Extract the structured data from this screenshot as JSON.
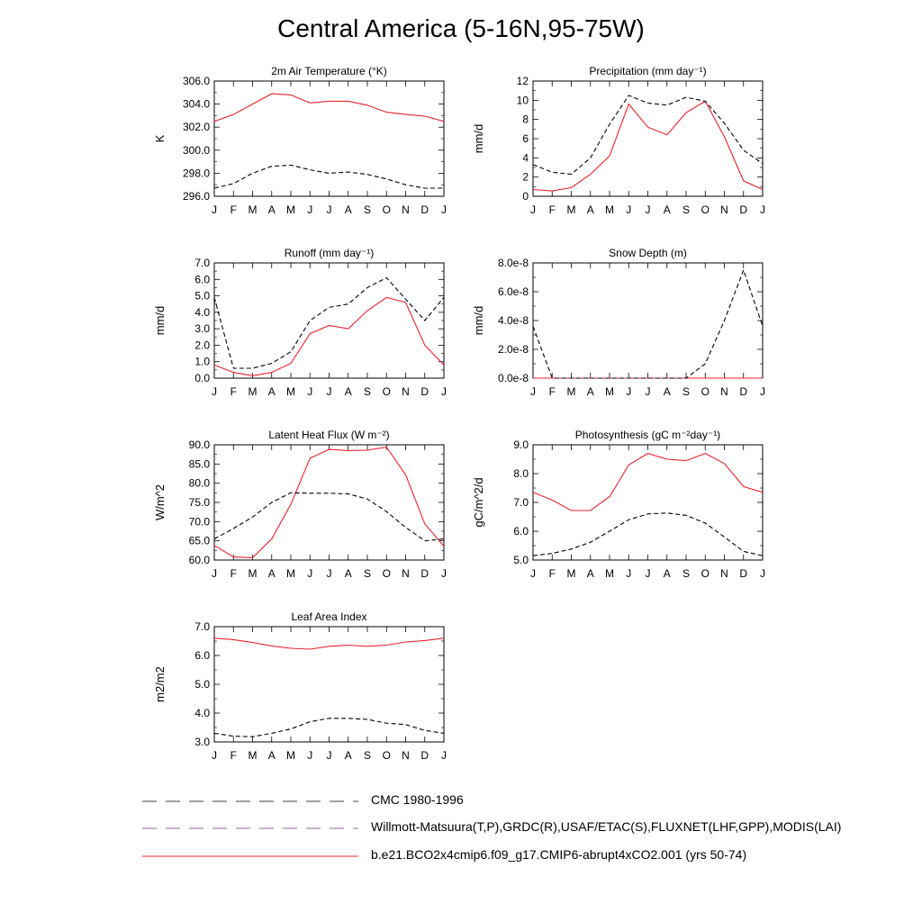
{
  "page_title": "Central America (5-16N,95-75W)",
  "colors": {
    "model": "#e8232e",
    "obs": "#000000",
    "obs_alt": "#3b3bbd"
  },
  "chart_data": [
    {
      "id": "tair",
      "type": "line",
      "title": "2m Air Temperature (°K)",
      "ylabel": "K",
      "categories": [
        "J",
        "F",
        "M",
        "A",
        "M",
        "J",
        "J",
        "A",
        "S",
        "O",
        "N",
        "D",
        "J"
      ],
      "ylim": [
        296.0,
        306.0
      ],
      "yticks": [
        "296.0",
        "298.0",
        "300.0",
        "302.0",
        "304.0",
        "306.0"
      ],
      "series": [
        {
          "style": "model",
          "values": [
            302.5,
            303.1,
            304.0,
            304.9,
            304.8,
            304.1,
            304.25,
            304.25,
            303.9,
            303.3,
            303.1,
            302.95,
            302.5
          ]
        },
        {
          "style": "obs",
          "values": [
            296.7,
            297.1,
            298.0,
            298.6,
            298.7,
            298.3,
            298.0,
            298.1,
            297.9,
            297.5,
            297.0,
            296.7,
            296.7
          ]
        }
      ]
    },
    {
      "id": "precip",
      "type": "line",
      "title": "Precipitation (mm day⁻¹)",
      "ylabel": "mm/d",
      "categories": [
        "J",
        "F",
        "M",
        "A",
        "M",
        "J",
        "J",
        "A",
        "S",
        "O",
        "N",
        "D",
        "J"
      ],
      "ylim": [
        0,
        12
      ],
      "yticks": [
        "0",
        "2",
        "4",
        "6",
        "8",
        "10",
        "12"
      ],
      "series": [
        {
          "style": "model",
          "values": [
            0.7,
            0.55,
            0.9,
            2.3,
            4.2,
            9.6,
            7.2,
            6.4,
            8.7,
            9.9,
            6.2,
            1.6,
            0.7
          ]
        },
        {
          "style": "obs",
          "values": [
            3.3,
            2.5,
            2.3,
            4.0,
            7.5,
            10.5,
            9.7,
            9.5,
            10.3,
            9.9,
            7.6,
            4.8,
            3.4
          ]
        }
      ]
    },
    {
      "id": "runoff",
      "type": "line",
      "title": "Runoff (mm day⁻¹)",
      "ylabel": "mm/d",
      "categories": [
        "J",
        "F",
        "M",
        "A",
        "M",
        "J",
        "J",
        "A",
        "S",
        "O",
        "N",
        "D",
        "J"
      ],
      "ylim": [
        0,
        7
      ],
      "yticks": [
        "0.0",
        "1.0",
        "2.0",
        "3.0",
        "4.0",
        "5.0",
        "6.0",
        "7.0"
      ],
      "series": [
        {
          "style": "model",
          "values": [
            0.8,
            0.35,
            0.15,
            0.35,
            0.9,
            2.7,
            3.2,
            3.0,
            4.1,
            4.9,
            4.6,
            2.0,
            0.8
          ]
        },
        {
          "style": "obs",
          "values": [
            4.9,
            0.6,
            0.6,
            0.9,
            1.6,
            3.5,
            4.3,
            4.5,
            5.5,
            6.1,
            4.8,
            3.5,
            4.9
          ]
        }
      ]
    },
    {
      "id": "snow",
      "type": "line",
      "title": "Snow Depth (m)",
      "ylabel": "mm/d",
      "categories": [
        "J",
        "F",
        "M",
        "A",
        "M",
        "J",
        "J",
        "A",
        "S",
        "O",
        "N",
        "D",
        "J"
      ],
      "ylim": [
        0,
        8e-08
      ],
      "yticks": [
        "0.0e-8",
        "2.0e-8",
        "4.0e-8",
        "6.0e-8",
        "8.0e-8"
      ],
      "series": [
        {
          "style": "model",
          "values": [
            0,
            0,
            0,
            0,
            0,
            0,
            0,
            0,
            0,
            0,
            0,
            0,
            0
          ]
        },
        {
          "style": "obs",
          "values": [
            3.6e-08,
            0,
            0,
            0,
            0,
            0,
            0,
            0,
            0,
            1e-08,
            4e-08,
            7.5e-08,
            3.6e-08
          ]
        }
      ]
    },
    {
      "id": "lhf",
      "type": "line",
      "title": "Latent Heat Flux (W m⁻²)",
      "ylabel": "W/m^2",
      "categories": [
        "J",
        "F",
        "M",
        "A",
        "M",
        "J",
        "J",
        "A",
        "S",
        "O",
        "N",
        "D",
        "J"
      ],
      "ylim": [
        60,
        90
      ],
      "yticks": [
        "60.0",
        "65.0",
        "70.0",
        "75.0",
        "80.0",
        "85.0",
        "90.0"
      ],
      "series": [
        {
          "style": "model",
          "values": [
            63.8,
            60.8,
            60.6,
            65.5,
            74.5,
            86.5,
            88.8,
            88.5,
            88.6,
            89.4,
            82.2,
            69.4,
            63.6
          ]
        },
        {
          "style": "obs",
          "values": [
            65.5,
            68.2,
            71.2,
            75.0,
            77.5,
            77.4,
            77.4,
            77.2,
            75.9,
            72.6,
            68.5,
            65.0,
            65.5
          ]
        }
      ]
    },
    {
      "id": "gpp",
      "type": "line",
      "title": "Photosynthesis (gC m⁻²day⁻¹)",
      "ylabel": "gC/m^2/d",
      "categories": [
        "J",
        "F",
        "M",
        "A",
        "M",
        "J",
        "J",
        "A",
        "S",
        "O",
        "N",
        "D",
        "J"
      ],
      "ylim": [
        5.0,
        9.0
      ],
      "yticks": [
        "5.0",
        "6.0",
        "7.0",
        "8.0",
        "9.0"
      ],
      "series": [
        {
          "style": "model",
          "values": [
            7.35,
            7.08,
            6.72,
            6.72,
            7.2,
            8.3,
            8.7,
            8.5,
            8.45,
            8.7,
            8.35,
            7.55,
            7.35
          ]
        },
        {
          "style": "obs",
          "values": [
            5.15,
            5.23,
            5.38,
            5.62,
            6.0,
            6.4,
            6.6,
            6.63,
            6.55,
            6.28,
            5.8,
            5.3,
            5.15
          ]
        }
      ]
    },
    {
      "id": "lai",
      "type": "line",
      "title": "Leaf Area Index",
      "ylabel": "m2/m2",
      "categories": [
        "J",
        "F",
        "M",
        "A",
        "M",
        "J",
        "J",
        "A",
        "S",
        "O",
        "N",
        "D",
        "J"
      ],
      "ylim": [
        3.0,
        7.0
      ],
      "yticks": [
        "3.0",
        "4.0",
        "5.0",
        "6.0",
        "7.0"
      ],
      "series": [
        {
          "style": "model",
          "values": [
            6.6,
            6.55,
            6.45,
            6.33,
            6.25,
            6.22,
            6.32,
            6.36,
            6.32,
            6.36,
            6.47,
            6.52,
            6.6
          ]
        },
        {
          "style": "obs",
          "values": [
            3.3,
            3.2,
            3.18,
            3.3,
            3.45,
            3.7,
            3.82,
            3.82,
            3.78,
            3.65,
            3.6,
            3.4,
            3.3
          ]
        }
      ]
    }
  ],
  "legend": [
    {
      "label": "CMC 1980-1996",
      "style": "obs"
    },
    {
      "label": "Willmott-Matsuura(T,P),GRDC(R),USAF/ETAC(S),FLUXNET(LHF,GPP),MODIS(LAI)",
      "style": "obs_mixed"
    },
    {
      "label": "b.e21.BCO2x4cmip6.f09_g17.CMIP6-abrupt4xCO2.001 (yrs 50-74)",
      "style": "model"
    }
  ]
}
